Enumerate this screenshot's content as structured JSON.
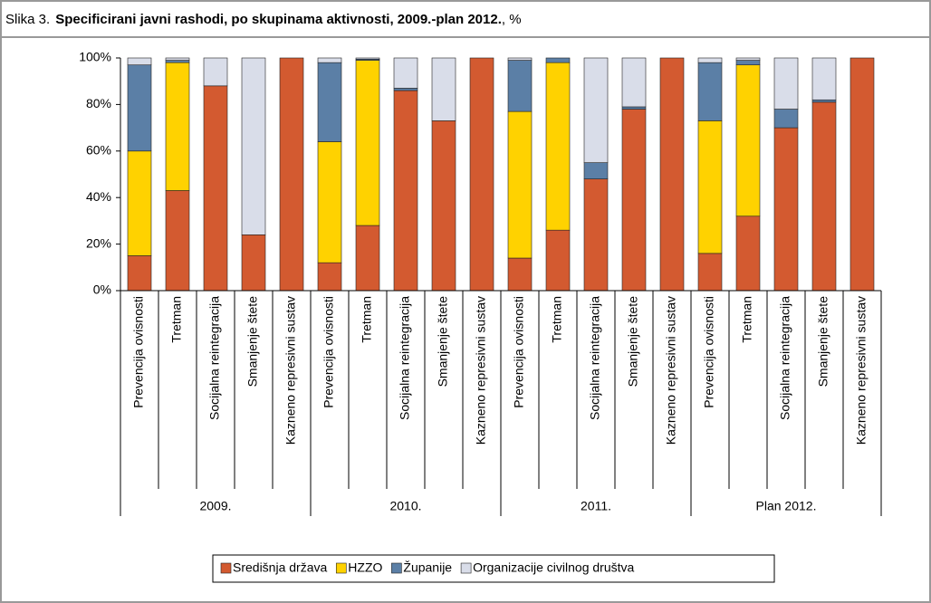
{
  "chart_data": {
    "type": "stacked_bar",
    "figure_label": "Slika 3.",
    "title": "Specificirani javni rashodi, po skupinama aktivnosti, 2009.-plan 2012.",
    "title_suffix": ", %",
    "categories": [
      "Prevencija ovisnosti",
      "Tretman",
      "Socijalna reintegracija",
      "Smanjenje štete",
      "Kazneno represivni sustav",
      "Prevencija ovisnosti",
      "Tretman",
      "Socijalna reintegracija",
      "Smanjenje štete",
      "Kazneno represivni sustav",
      "Prevencija ovisnosti",
      "Tretman",
      "Socijalna reintegracija",
      "Smanjenje štete",
      "Kazneno represivni sustav",
      "Prevencija ovisnosti",
      "Tretman",
      "Socijalna reintegracija",
      "Smanjenje štete",
      "Kazneno represivni sustav"
    ],
    "groups": [
      "2009.",
      "2010.",
      "2011.",
      "Plan 2012."
    ],
    "series": [
      {
        "name": "Središnja država",
        "color": "#d35a30",
        "values": [
          15,
          43,
          88,
          24,
          100,
          12,
          28,
          86,
          73,
          100,
          14,
          26,
          48,
          78,
          100,
          16,
          32,
          70,
          81,
          100
        ]
      },
      {
        "name": "HZZO",
        "color": "#ffd200",
        "values": [
          45,
          55,
          0,
          0,
          0,
          52,
          71,
          0,
          0,
          0,
          63,
          72,
          0,
          0,
          0,
          57,
          65,
          0,
          0,
          0
        ]
      },
      {
        "name": "Županije",
        "color": "#5b7fa6",
        "values": [
          37,
          1,
          0,
          0,
          0,
          34,
          0.5,
          1,
          0,
          0,
          22,
          2,
          7,
          1,
          0,
          25,
          2,
          8,
          1,
          0
        ]
      },
      {
        "name": "Organizacije civilnog društva",
        "color": "#d9dde9",
        "values": [
          3,
          1,
          12,
          76,
          0,
          2,
          0.5,
          13,
          27,
          0,
          1,
          0,
          45,
          21,
          0,
          2,
          1,
          22,
          18,
          0
        ]
      }
    ],
    "ylim": [
      0,
      100
    ],
    "yticks": [
      {
        "value": 0,
        "label": "0%"
      },
      {
        "value": 20,
        "label": "20%"
      },
      {
        "value": 40,
        "label": "40%"
      },
      {
        "value": 60,
        "label": "60%"
      },
      {
        "value": 80,
        "label": "80%"
      },
      {
        "value": 100,
        "label": "100%"
      }
    ],
    "grid": false,
    "legend": "bottom"
  }
}
